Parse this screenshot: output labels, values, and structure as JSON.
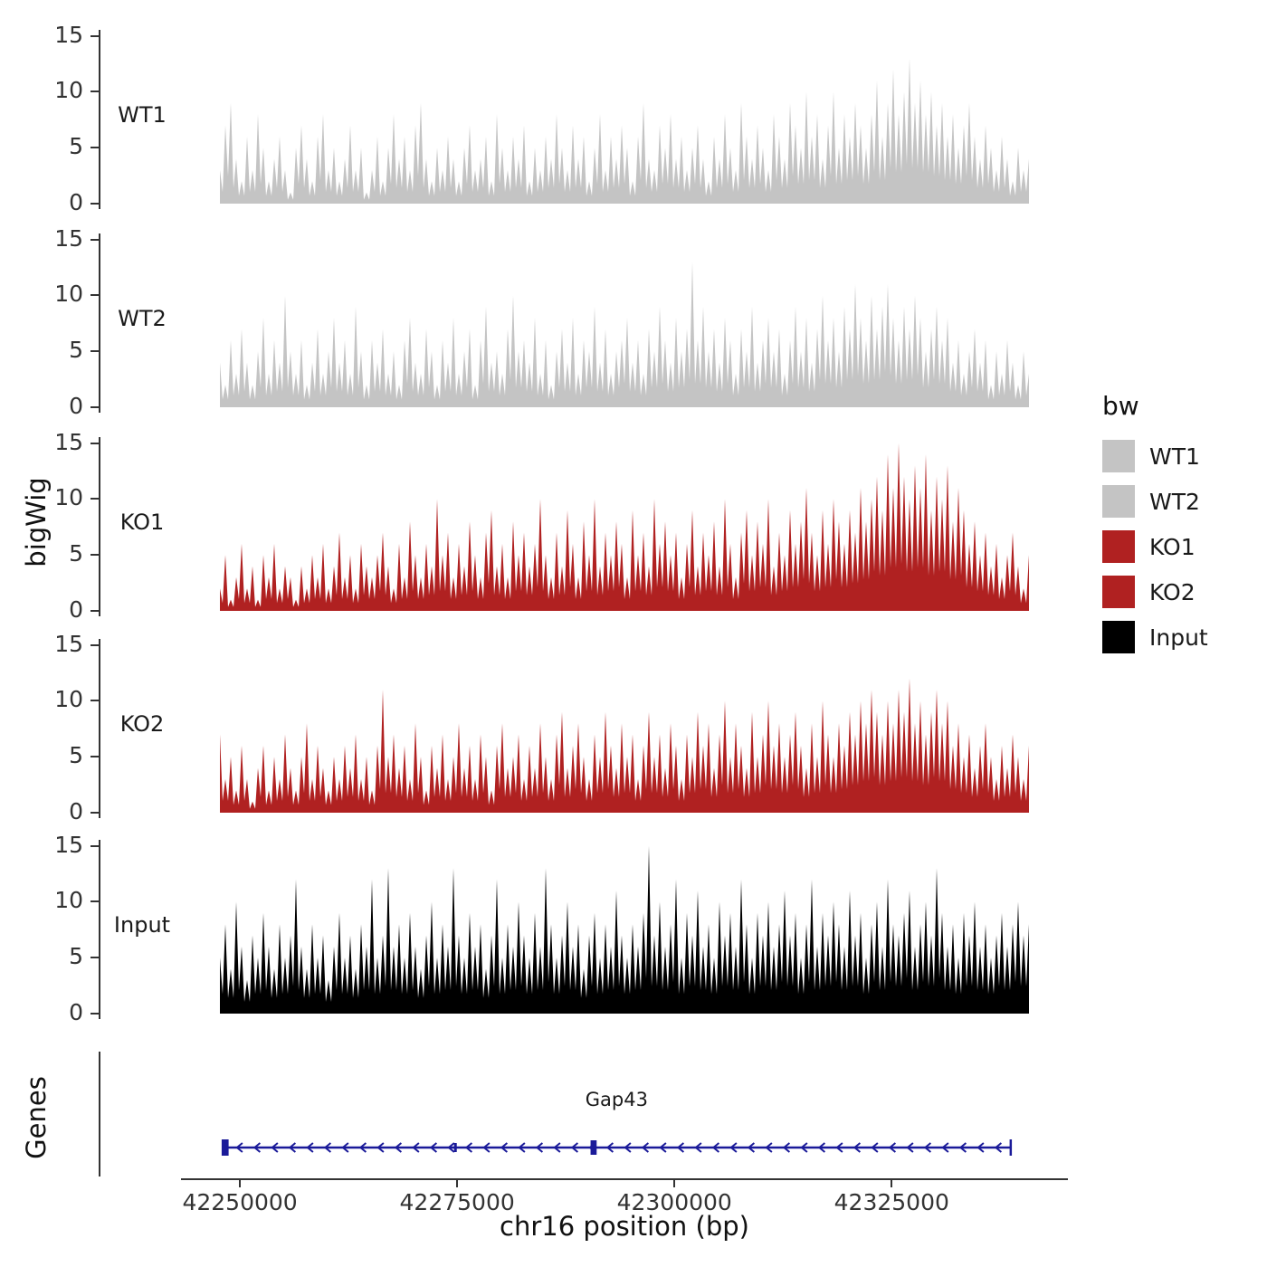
{
  "chart_data": {
    "type": "area",
    "title": "",
    "xlabel": "chr16 position (bp)",
    "ylabel": "bigWig",
    "genes_panel_label": "Genes",
    "legend_title": "bw",
    "x_range": [
      42247700,
      42340800
    ],
    "x_ticks": [
      42250000,
      42275000,
      42300000,
      42325000
    ],
    "y_ticks": [
      0,
      5,
      10,
      15
    ],
    "y_max": 15.5,
    "grid": false,
    "legend_position": "right",
    "colors": {
      "wt": "#C4C4C4",
      "ko": "#B02121",
      "input": "#000000",
      "gene": "#1A1A99",
      "axis": "#333333"
    },
    "tracks": [
      {
        "name": "WT1",
        "color": "#C4C4C4",
        "values": [
          3,
          7,
          9,
          4,
          2,
          6,
          3,
          8,
          5,
          2,
          4,
          6,
          3,
          1,
          5,
          7,
          4,
          2,
          6,
          8,
          3,
          5,
          2,
          4,
          7,
          3,
          5,
          1,
          3,
          6,
          2,
          5,
          8,
          4,
          6,
          3,
          7,
          9,
          4,
          2,
          5,
          3,
          6,
          4,
          2,
          5,
          7,
          3,
          4,
          6,
          2,
          8,
          5,
          3,
          6,
          4,
          7,
          2,
          5,
          3,
          6,
          4,
          8,
          5,
          3,
          7,
          4,
          6,
          2,
          5,
          8,
          3,
          6,
          4,
          7,
          5,
          2,
          6,
          9,
          4,
          3,
          7,
          5,
          8,
          4,
          6,
          3,
          5,
          7,
          4,
          2,
          6,
          4,
          8,
          5,
          3,
          9,
          6,
          4,
          7,
          5,
          3,
          8,
          6,
          4,
          9,
          7,
          5,
          10,
          6,
          8,
          4,
          7,
          10,
          5,
          8,
          6,
          9,
          7,
          5,
          8,
          11,
          6,
          9,
          12,
          8,
          10,
          13,
          9,
          11,
          8,
          10,
          7,
          9,
          6,
          8,
          5,
          7,
          9,
          6,
          4,
          7,
          5,
          3,
          6,
          4,
          2,
          5,
          3,
          4
        ]
      },
      {
        "name": "WT2",
        "color": "#C4C4C4",
        "values": [
          4,
          2,
          6,
          3,
          7,
          4,
          2,
          5,
          8,
          3,
          6,
          4,
          10,
          5,
          3,
          6,
          2,
          4,
          7,
          3,
          5,
          8,
          4,
          6,
          3,
          9,
          5,
          2,
          6,
          4,
          7,
          3,
          5,
          2,
          6,
          8,
          4,
          3,
          7,
          5,
          2,
          6,
          4,
          8,
          3,
          5,
          7,
          2,
          6,
          9,
          4,
          5,
          3,
          7,
          10,
          5,
          6,
          4,
          8,
          3,
          6,
          2,
          5,
          7,
          4,
          8,
          3,
          6,
          5,
          9,
          4,
          7,
          3,
          5,
          6,
          8,
          4,
          6,
          3,
          7,
          5,
          9,
          6,
          4,
          8,
          5,
          7,
          13,
          6,
          9,
          5,
          7,
          4,
          8,
          6,
          3,
          7,
          5,
          9,
          4,
          6,
          8,
          5,
          7,
          3,
          6,
          9,
          5,
          8,
          4,
          7,
          10,
          6,
          8,
          5,
          9,
          7,
          11,
          8,
          6,
          10,
          7,
          9,
          11,
          8,
          6,
          9,
          7,
          10,
          8,
          5,
          7,
          9,
          6,
          8,
          4,
          6,
          3,
          5,
          7,
          4,
          6,
          2,
          5,
          3,
          6,
          4,
          2,
          5,
          3
        ]
      },
      {
        "name": "KO1",
        "color": "#B02121",
        "values": [
          2,
          5,
          1,
          3,
          6,
          2,
          4,
          1,
          5,
          3,
          6,
          2,
          4,
          3,
          1,
          4,
          2,
          5,
          3,
          6,
          2,
          4,
          7,
          3,
          5,
          2,
          6,
          4,
          3,
          5,
          7,
          4,
          2,
          6,
          3,
          8,
          5,
          3,
          6,
          4,
          10,
          5,
          7,
          3,
          6,
          4,
          8,
          5,
          3,
          7,
          9,
          4,
          6,
          3,
          8,
          5,
          7,
          4,
          6,
          10,
          5,
          3,
          7,
          4,
          9,
          6,
          3,
          8,
          5,
          10,
          4,
          7,
          5,
          8,
          6,
          3,
          9,
          5,
          7,
          4,
          10,
          6,
          8,
          5,
          7,
          3,
          6,
          9,
          4,
          7,
          5,
          8,
          4,
          10,
          6,
          3,
          7,
          9,
          5,
          8,
          6,
          10,
          4,
          7,
          5,
          9,
          6,
          8,
          11,
          7,
          5,
          9,
          6,
          10,
          8,
          6,
          9,
          7,
          11,
          8,
          10,
          12,
          9,
          14,
          11,
          15,
          12,
          10,
          13,
          11,
          14,
          9,
          12,
          10,
          13,
          8,
          11,
          9,
          6,
          8,
          5,
          7,
          4,
          6,
          3,
          5,
          7,
          4,
          2,
          5
        ]
      },
      {
        "name": "KO2",
        "color": "#B02121",
        "values": [
          7,
          3,
          5,
          2,
          6,
          3,
          1,
          4,
          6,
          2,
          5,
          3,
          7,
          4,
          2,
          5,
          8,
          3,
          6,
          4,
          2,
          5,
          3,
          6,
          4,
          7,
          3,
          5,
          2,
          6,
          11,
          5,
          7,
          4,
          6,
          3,
          8,
          5,
          2,
          6,
          4,
          7,
          3,
          5,
          8,
          4,
          6,
          3,
          7,
          5,
          2,
          6,
          8,
          4,
          5,
          7,
          3,
          6,
          4,
          8,
          5,
          3,
          7,
          9,
          4,
          6,
          8,
          5,
          3,
          7,
          5,
          9,
          6,
          4,
          8,
          5,
          7,
          3,
          6,
          9,
          5,
          7,
          4,
          8,
          6,
          3,
          7,
          5,
          9,
          6,
          8,
          4,
          7,
          10,
          5,
          8,
          6,
          4,
          9,
          5,
          7,
          10,
          6,
          8,
          5,
          7,
          9,
          6,
          4,
          8,
          5,
          10,
          7,
          5,
          8,
          6,
          9,
          7,
          10,
          8,
          11,
          9,
          7,
          10,
          8,
          11,
          9,
          12,
          8,
          10,
          7,
          9,
          11,
          8,
          10,
          6,
          8,
          5,
          7,
          4,
          6,
          8,
          5,
          3,
          6,
          4,
          7,
          5,
          3,
          6
        ]
      },
      {
        "name": "Input",
        "color": "#000000",
        "values": [
          5,
          8,
          4,
          10,
          6,
          3,
          7,
          5,
          9,
          6,
          4,
          8,
          5,
          7,
          12,
          6,
          4,
          8,
          5,
          7,
          3,
          6,
          9,
          5,
          7,
          4,
          8,
          6,
          12,
          5,
          7,
          13,
          6,
          8,
          5,
          9,
          6,
          4,
          7,
          10,
          5,
          8,
          6,
          13,
          7,
          5,
          9,
          6,
          8,
          4,
          7,
          12,
          5,
          8,
          6,
          10,
          7,
          5,
          9,
          6,
          13,
          8,
          5,
          7,
          10,
          6,
          8,
          4,
          7,
          9,
          5,
          8,
          6,
          11,
          7,
          5,
          8,
          6,
          9,
          15,
          7,
          10,
          6,
          8,
          12,
          5,
          9,
          7,
          11,
          6,
          8,
          5,
          10,
          7,
          9,
          6,
          12,
          8,
          5,
          9,
          7,
          10,
          6,
          8,
          11,
          7,
          9,
          5,
          8,
          12,
          6,
          9,
          7,
          10,
          8,
          6,
          11,
          7,
          9,
          5,
          8,
          10,
          6,
          12,
          8,
          7,
          9,
          11,
          6,
          8,
          10,
          7,
          13,
          9,
          6,
          8,
          5,
          9,
          7,
          10,
          6,
          8,
          5,
          7,
          9,
          6,
          8,
          10,
          7,
          8
        ]
      }
    ],
    "legend": [
      {
        "label": "WT1",
        "color": "#C4C4C4"
      },
      {
        "label": "WT2",
        "color": "#C4C4C4"
      },
      {
        "label": "KO1",
        "color": "#B02121"
      },
      {
        "label": "KO2",
        "color": "#B02121"
      },
      {
        "label": "Input",
        "color": "#000000"
      }
    ],
    "genes": {
      "gene_name": "Gap43",
      "strand": "-",
      "start": 42248000,
      "end": 42338700,
      "exons": [
        {
          "pos": 42248300,
          "width_bp": 800,
          "height": 18
        },
        {
          "pos": 42274800,
          "width_bp": 250,
          "height": 10
        },
        {
          "pos": 42290700,
          "width_bp": 700,
          "height": 16
        }
      ]
    }
  }
}
